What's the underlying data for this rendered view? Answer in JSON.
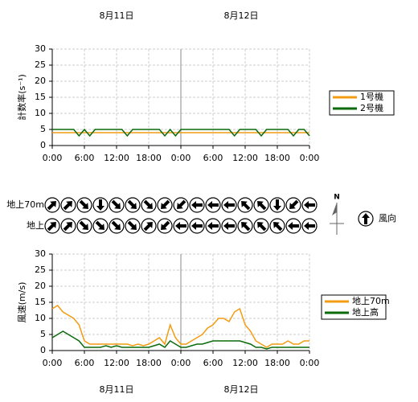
{
  "date_labels": [
    "8月11日",
    "8月12日"
  ],
  "chart_data": [
    {
      "type": "line",
      "ylabel": "計数率(s⁻¹)",
      "x": [
        0,
        1,
        2,
        3,
        4,
        5,
        6,
        7,
        8,
        9,
        10,
        11,
        12,
        13,
        14,
        15,
        16,
        17,
        18,
        19,
        20,
        21,
        22,
        23,
        24,
        25,
        26,
        27,
        28,
        29,
        30,
        31,
        32,
        33,
        34,
        35,
        36,
        37,
        38,
        39,
        40,
        41,
        42,
        43,
        44,
        45,
        46,
        47,
        48
      ],
      "xlim": [
        0,
        48
      ],
      "xticks": [
        {
          "value": 0,
          "label": "0:00"
        },
        {
          "value": 6,
          "label": "6:00"
        },
        {
          "value": 12,
          "label": "12:00"
        },
        {
          "value": 18,
          "label": "18:00"
        },
        {
          "value": 24,
          "label": "0:00"
        },
        {
          "value": 30,
          "label": "6:00"
        },
        {
          "value": 36,
          "label": "12:00"
        },
        {
          "value": 42,
          "label": "18:00"
        },
        {
          "value": 48,
          "label": "0:00"
        }
      ],
      "ylim": [
        0,
        30
      ],
      "yticks": [
        0,
        5,
        10,
        15,
        20,
        25,
        30
      ],
      "grid": true,
      "series": [
        {
          "name": "1号機",
          "color": "#f39c12",
          "values": [
            4,
            4,
            4,
            4,
            4,
            4,
            4,
            4,
            4,
            4,
            4,
            4,
            4,
            4,
            4,
            4,
            4,
            4,
            4,
            4,
            4,
            4,
            4,
            4,
            4,
            4,
            4,
            4,
            4,
            4,
            4,
            4,
            4,
            4,
            4,
            4,
            4,
            4,
            4,
            4,
            4,
            4,
            4,
            4,
            4,
            4,
            4,
            4,
            4
          ]
        },
        {
          "name": "2号機",
          "color": "#0a6a0a",
          "values": [
            5,
            5,
            5,
            5,
            5,
            3,
            5,
            3,
            5,
            5,
            5,
            5,
            5,
            5,
            3,
            5,
            5,
            5,
            5,
            5,
            5,
            3,
            5,
            3,
            5,
            5,
            5,
            5,
            5,
            5,
            5,
            5,
            5,
            5,
            3,
            5,
            5,
            5,
            5,
            3,
            5,
            5,
            5,
            5,
            5,
            3,
            5,
            5,
            3
          ]
        }
      ]
    },
    {
      "type": "wind-arrows",
      "legend": "風向",
      "north": "N",
      "rows": [
        {
          "label": "地上70m",
          "values": [
            45,
            45,
            135,
            180,
            135,
            135,
            135,
            225,
            225,
            270,
            270,
            270,
            315,
            315,
            180,
            225,
            270
          ]
        },
        {
          "label": "地上",
          "values": [
            45,
            45,
            135,
            135,
            135,
            135,
            45,
            225,
            270,
            270,
            270,
            270,
            315,
            315,
            315,
            270,
            270
          ]
        }
      ]
    },
    {
      "type": "line",
      "ylabel": "風速(m/s)",
      "x": [
        0,
        1,
        2,
        3,
        4,
        5,
        6,
        7,
        8,
        9,
        10,
        11,
        12,
        13,
        14,
        15,
        16,
        17,
        18,
        19,
        20,
        21,
        22,
        23,
        24,
        25,
        26,
        27,
        28,
        29,
        30,
        31,
        32,
        33,
        34,
        35,
        36,
        37,
        38,
        39,
        40,
        41,
        42,
        43,
        44,
        45,
        46,
        47,
        48
      ],
      "xlim": [
        0,
        48
      ],
      "xticks": [
        {
          "value": 0,
          "label": "0:00"
        },
        {
          "value": 6,
          "label": "6:00"
        },
        {
          "value": 12,
          "label": "12:00"
        },
        {
          "value": 18,
          "label": "18:00"
        },
        {
          "value": 24,
          "label": "0:00"
        },
        {
          "value": 30,
          "label": "6:00"
        },
        {
          "value": 36,
          "label": "12:00"
        },
        {
          "value": 42,
          "label": "18:00"
        },
        {
          "value": 48,
          "label": "0:00"
        }
      ],
      "ylim": [
        0,
        30
      ],
      "yticks": [
        0,
        5,
        10,
        15,
        20,
        25,
        30
      ],
      "grid": true,
      "series": [
        {
          "name": "地上70m",
          "color": "#f39c12",
          "values": [
            13,
            14,
            12,
            11,
            10,
            8,
            3,
            2,
            2,
            2,
            2,
            2,
            2,
            2,
            2,
            1.5,
            2,
            1.5,
            2,
            3,
            4,
            2,
            8,
            4,
            2,
            2,
            3,
            4,
            5,
            7,
            8,
            10,
            10,
            9,
            12,
            13,
            8,
            6,
            3,
            2,
            1,
            2,
            2,
            2,
            3,
            2,
            2,
            3,
            3
          ]
        },
        {
          "name": "地上高",
          "color": "#0a6a0a",
          "values": [
            4,
            5,
            6,
            5,
            4,
            3,
            1,
            1,
            1,
            1,
            1.5,
            1,
            1.5,
            1,
            1,
            1,
            1,
            1,
            1,
            1.5,
            2,
            1,
            3,
            2,
            1,
            1,
            1.5,
            2,
            2,
            2.5,
            3,
            3,
            3,
            3,
            3,
            3,
            2.5,
            2,
            1,
            1,
            0.5,
            1,
            1,
            1,
            1,
            1,
            1,
            1,
            1
          ]
        }
      ]
    }
  ]
}
